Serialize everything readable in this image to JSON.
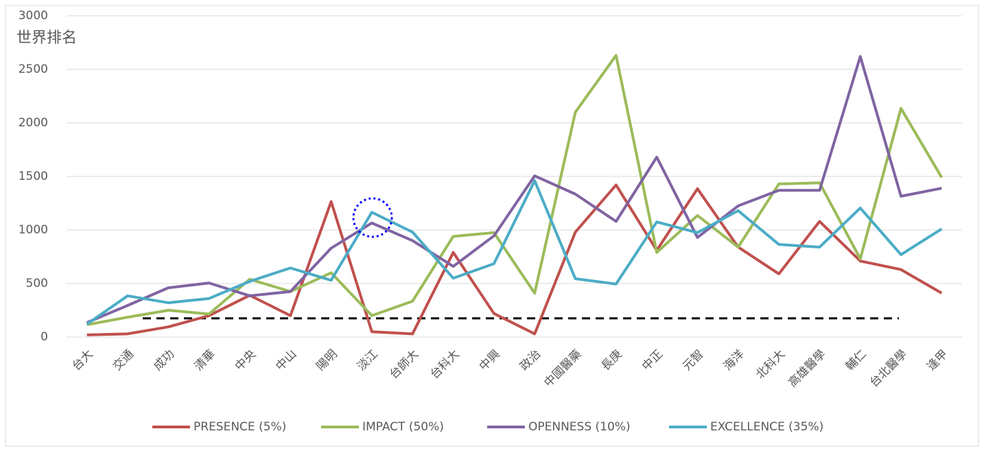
{
  "chart_data": {
    "type": "line",
    "y_label": "世界排名",
    "categories": [
      "台大",
      "交通",
      "成功",
      "清華",
      "中央",
      "中山",
      "陽明",
      "淡江",
      "台師大",
      "台科大",
      "中興",
      "政治",
      "中國醫藥",
      "長庚",
      "中正",
      "元智",
      "海洋",
      "北科大",
      "高雄醫學",
      "輔仁",
      "台北醫學",
      "逢甲"
    ],
    "series": [
      {
        "name": "PRESENCE (5%)",
        "color": "#c0504d",
        "values": [
          20,
          30,
          95,
          200,
          390,
          200,
          1265,
          50,
          30,
          790,
          220,
          30,
          980,
          1420,
          810,
          1385,
          840,
          590,
          1080,
          710,
          630,
          410
        ]
      },
      {
        "name": "IMPACT (50%)",
        "color": "#9bbb59",
        "values": [
          115,
          185,
          250,
          215,
          540,
          425,
          600,
          200,
          335,
          940,
          975,
          410,
          2100,
          2630,
          790,
          1135,
          840,
          1430,
          1440,
          730,
          2135,
          1490
        ]
      },
      {
        "name": "OPENNESS (10%)",
        "color": "#8064a2",
        "values": [
          135,
          295,
          460,
          505,
          385,
          425,
          830,
          1065,
          900,
          660,
          945,
          1505,
          1335,
          1080,
          1680,
          930,
          1225,
          1370,
          1370,
          2620,
          1315,
          1390
        ]
      },
      {
        "name": "EXCELLENCE (35%)",
        "color": "#4bacc6",
        "values": [
          120,
          385,
          320,
          360,
          520,
          645,
          530,
          1165,
          980,
          550,
          685,
          1460,
          545,
          495,
          1075,
          975,
          1180,
          865,
          840,
          1205,
          770,
          1010
        ]
      }
    ],
    "reference": {
      "value": 175,
      "color": "#000000"
    },
    "ylim": [
      0,
      3000
    ],
    "yticks": [
      0,
      500,
      1000,
      1500,
      2000,
      2500,
      3000
    ],
    "grid": true,
    "legend": "bottom"
  }
}
